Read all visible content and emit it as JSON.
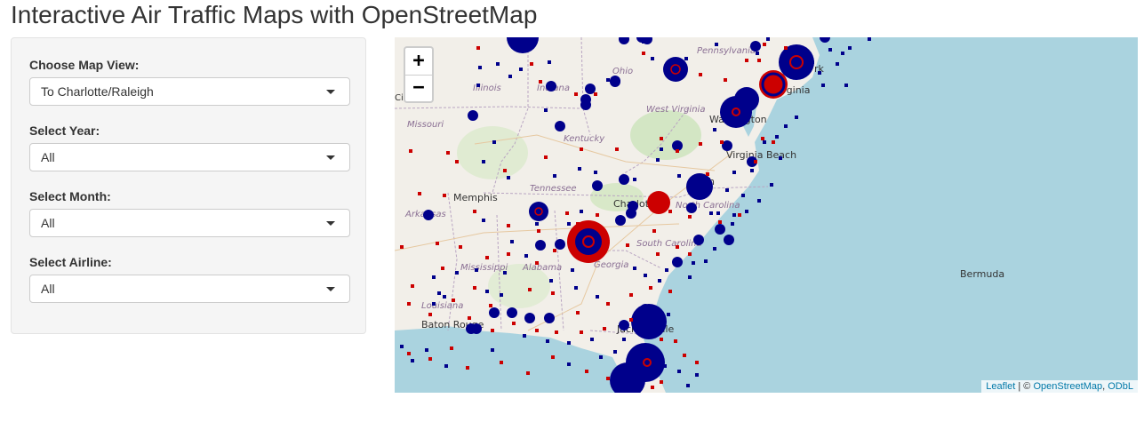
{
  "page": {
    "title": "Interactive Air Traffic Maps with OpenStreetMap"
  },
  "controls": {
    "map_view": {
      "label": "Choose Map View:",
      "value": "To Charlotte/Raleigh"
    },
    "year": {
      "label": "Select Year:",
      "value": "All"
    },
    "month": {
      "label": "Select Month:",
      "value": "All"
    },
    "airline": {
      "label": "Select Airline:",
      "value": "All"
    }
  },
  "map": {
    "zoom_in": "+",
    "zoom_out": "−",
    "attribution": {
      "leaflet": "Leaflet",
      "separator": " | © ",
      "osm": "OpenStreetMap",
      "sep2": ", ",
      "odbl": "ODbL"
    },
    "places": {
      "pennsylvania": "Pennsylvania",
      "ohio": "Ohio",
      "illinois": "Illinois",
      "indiana": "Indiana",
      "missouri": "Missouri",
      "kentucky": "Kentucky",
      "west_virginia": "West Virginia",
      "washington": "Washington",
      "virginia": "Virginia",
      "virginia_beach": "Virginia Beach",
      "tennessee": "Tennessee",
      "memphis": "Memphis",
      "arkansas": "Arkansas",
      "charlotte": "Charlotte",
      "north_carolina": "North Carolina",
      "south_carolina": "South Carolina",
      "mississippi": "Mississippi",
      "alabama": "Alabama",
      "georgia": "Georgia",
      "louisiana": "Louisiana",
      "baton_rouge": "Baton Rouge",
      "jacksonville": "Jacksonville",
      "bermuda": "Bermuda",
      "city_left": "City",
      "rk": "rk",
      "gh": "gh"
    },
    "colors": {
      "water": "#aad3df",
      "land": "#f2efe9",
      "blue_marker": "#00008b",
      "red_marker": "#cc0000"
    }
  }
}
